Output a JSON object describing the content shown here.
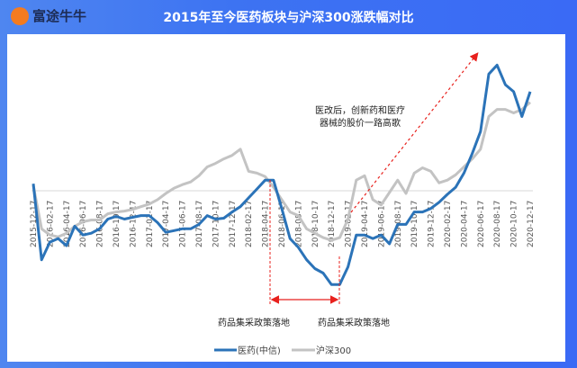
{
  "header": {
    "brand": "富途牛牛",
    "title": "2015年至今医药板块与沪深300涨跌幅对比"
  },
  "colors": {
    "medicine": "#2b73b8",
    "hs300": "#c3c3c3",
    "annotation": "#e8211d",
    "header": "#3d73f2"
  },
  "chart_data": {
    "type": "line",
    "title": "2015年至今医药板块与沪深300涨跌幅对比",
    "x_tick_labels": [
      "2015-12-17",
      "2016-02-17",
      "2016-04-17",
      "2016-06-17",
      "2016-08-17",
      "2016-10-17",
      "2016-12-17",
      "2017-02-17",
      "2017-04-17",
      "2017-06-17",
      "2017-08-17",
      "2017-10-17",
      "2017-12-17",
      "2018-02-17",
      "2018-04-17",
      "2018-06-17",
      "2018-08-17",
      "2018-10-17",
      "2018-12-17",
      "2019-02-17",
      "2019-04-17",
      "2019-06-17",
      "2019-08-17",
      "2019-10-17",
      "2019-12-17",
      "2020-02-17",
      "2020-04-17",
      "2020-06-17",
      "2020-08-17",
      "2020-10-17",
      "2020-12-17"
    ],
    "x_start": "2015-12",
    "x_step": "1 month",
    "ylim": [
      -120,
      175
    ],
    "y_axis_labels": false,
    "grid": false,
    "legend": "bottom",
    "series": [
      {
        "name": "医药(中信)",
        "values": [
          8,
          -78,
          -58,
          -54,
          -62,
          -40,
          -50,
          -48,
          -43,
          -32,
          -29,
          -32,
          -30,
          -28,
          -28,
          -36,
          -47,
          -45,
          -43,
          -43,
          -38,
          -28,
          -32,
          -31,
          -24,
          -18,
          -8,
          2,
          12,
          12,
          -20,
          -54,
          -64,
          -78,
          -88,
          -93,
          -106,
          -106,
          -86,
          -50,
          -50,
          -54,
          -50,
          -60,
          -38,
          -38,
          -24,
          -24,
          -20,
          -13,
          -4,
          4,
          20,
          42,
          67,
          132,
          142,
          120,
          112,
          84,
          112
        ]
      },
      {
        "name": "沪深300",
        "values": [
          6,
          -43,
          -50,
          -52,
          -48,
          -40,
          -35,
          -33,
          -33,
          -26,
          -24,
          -23,
          -21,
          -18,
          -15,
          -10,
          -3,
          3,
          7,
          10,
          17,
          27,
          31,
          36,
          40,
          47,
          22,
          20,
          16,
          4,
          -10,
          -24,
          -28,
          -43,
          -48,
          -53,
          -56,
          -53,
          -32,
          12,
          17,
          -10,
          -16,
          -2,
          12,
          -3,
          20,
          26,
          22,
          9,
          12,
          18,
          27,
          36,
          47,
          84,
          92,
          92,
          88,
          92,
          100
        ]
      }
    ],
    "annotations": {
      "policy_label_1": "药品集采政策落地",
      "policy_label_2": "药品集采政策落地",
      "reform_note_line1": "医改后，创新药和医疗",
      "reform_note_line2": "器械的股价一路高歌"
    }
  }
}
